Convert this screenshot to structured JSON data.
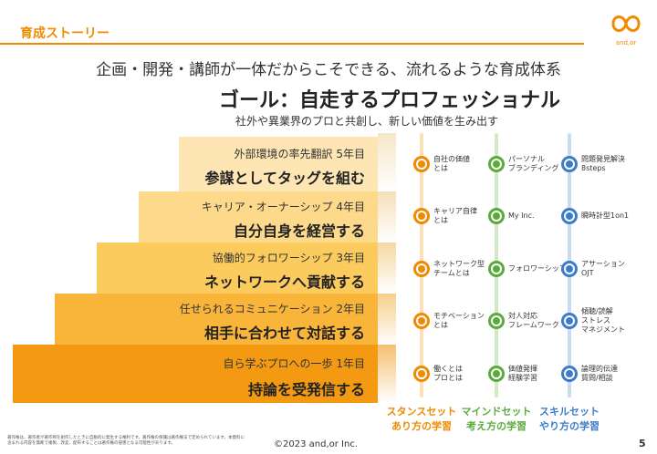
{
  "header": {
    "title": "育成ストーリー",
    "logo_text": "and,or"
  },
  "subtitle": "企画・開発・講師が一体だからこそできる、流れるような育成体系",
  "goal": {
    "title": "ゴール：自走するプロフェッショナル",
    "subtitle": "社外や異業界のプロと共創し、新しい価値を生み出す"
  },
  "steps": [
    {
      "label": "外部環境の率先翻訳  5年目",
      "main": "参謀としてタッグを組む"
    },
    {
      "label": "キャリア・オーナーシップ  4年目",
      "main": "自分自身を経営する"
    },
    {
      "label": "協働的フォロワーシップ  3年目",
      "main": "ネットワークへ貢献する"
    },
    {
      "label": "任せられるコミュニケーション  2年目",
      "main": "相手に合わせて対話する"
    },
    {
      "label": "自ら学ぶプロへの一歩  1年目",
      "main": "持論を受発信する"
    }
  ],
  "columns": [
    {
      "title": "スタンスセット",
      "subtitle": "あり方の学習",
      "color": "#f08a00",
      "items": [
        "自社の価値\nとは",
        "キャリア自律\nとは",
        "ネットワーク型\nチームとは",
        "モチベーション\nとは",
        "働くとは\nプロとは"
      ]
    },
    {
      "title": "マインドセット",
      "subtitle": "考え方の学習",
      "color": "#5aaa3c",
      "items": [
        "パーソナル\nブランディング",
        "My Inc.",
        "フォロワーシップ",
        "対人対応\nフレームワーク",
        "価値発揮\n経験学習"
      ]
    },
    {
      "title": "スキルセット",
      "subtitle": "やり方の学習",
      "color": "#3c7cc8",
      "items": [
        "問題発見解決\n8steps",
        "瞬時計型1on1",
        "アサーション\nOJT",
        "傾聴/読解\nストレス\nマネジメント",
        "論理的伝達\n質問/相談"
      ]
    }
  ],
  "footer": {
    "note": "著作権は、著作者が著作物を創作したときに自動的に発生する権利です。著作権の保護は著作権法で定められています。本資料に含まれる内容を無断で複製、改変、配布することは著作権の侵害となる可能性があります。",
    "copyright": "©2023 and,or Inc.",
    "page": "5"
  }
}
